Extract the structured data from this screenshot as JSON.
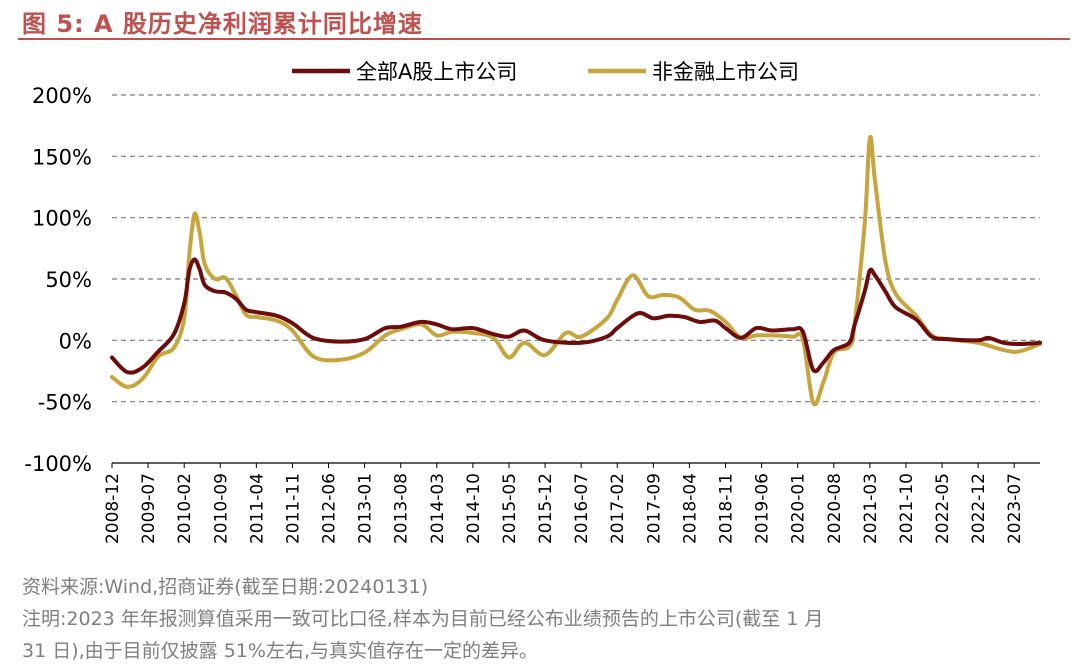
{
  "title": "图 5:  A 股历史净利润累计同比增速",
  "notes": {
    "source": "资料来源:Wind,招商证券(截至日期:20240131)",
    "line1": "注明:2023 年年报测算值采用一致可比口径,样本为目前已经公布业绩预告的上市公司(截至 1 月",
    "line2": "31 日),由于目前仅披露 51%左右,与真实值存在一定的差异。"
  },
  "chart_data": {
    "type": "line",
    "x_start": "2008-12",
    "x_end": "2023-12",
    "x_tick_labels": [
      "2008-12",
      "2009-07",
      "2010-02",
      "2010-09",
      "2011-04",
      "2011-11",
      "2012-06",
      "2013-01",
      "2013-08",
      "2014-03",
      "2014-10",
      "2015-05",
      "2015-12",
      "2016-07",
      "2017-02",
      "2017-09",
      "2018-04",
      "2018-11",
      "2019-06",
      "2020-01",
      "2020-08",
      "2021-03",
      "2021-10",
      "2022-05",
      "2022-12",
      "2023-07"
    ],
    "y_tick_labels": [
      "200%",
      "150%",
      "100%",
      "50%",
      "0%",
      "-50%",
      "-100%"
    ],
    "ylim": [
      -100,
      200
    ],
    "y_ticks": [
      200,
      150,
      100,
      50,
      0,
      -50,
      -100
    ],
    "grid": true,
    "legend_position": "top",
    "series": [
      {
        "name": "全部A股上市公司",
        "color": "#6e0b0b",
        "points": [
          [
            "2008-12",
            -14
          ],
          [
            "2009-03",
            -26
          ],
          [
            "2009-06",
            -22
          ],
          [
            "2009-09",
            -9
          ],
          [
            "2009-12",
            5
          ],
          [
            "2010-02",
            30
          ],
          [
            "2010-03",
            57
          ],
          [
            "2010-04",
            66
          ],
          [
            "2010-05",
            58
          ],
          [
            "2010-06",
            45
          ],
          [
            "2010-08",
            40
          ],
          [
            "2010-10",
            39
          ],
          [
            "2010-12",
            34
          ],
          [
            "2011-02",
            25
          ],
          [
            "2011-04",
            23
          ],
          [
            "2011-08",
            20
          ],
          [
            "2011-11",
            14
          ],
          [
            "2012-03",
            2
          ],
          [
            "2012-08",
            -1
          ],
          [
            "2013-01",
            1
          ],
          [
            "2013-05",
            10
          ],
          [
            "2013-08",
            11
          ],
          [
            "2013-12",
            15
          ],
          [
            "2014-03",
            13
          ],
          [
            "2014-06",
            9
          ],
          [
            "2014-10",
            10
          ],
          [
            "2015-02",
            5
          ],
          [
            "2015-05",
            3
          ],
          [
            "2015-08",
            8
          ],
          [
            "2015-12",
            0
          ],
          [
            "2016-07",
            -2
          ],
          [
            "2016-12",
            3
          ],
          [
            "2017-02",
            10
          ],
          [
            "2017-06",
            22
          ],
          [
            "2017-09",
            18
          ],
          [
            "2017-12",
            20
          ],
          [
            "2018-03",
            19
          ],
          [
            "2018-06",
            15
          ],
          [
            "2018-09",
            16
          ],
          [
            "2018-11",
            10
          ],
          [
            "2019-02",
            2
          ],
          [
            "2019-05",
            10
          ],
          [
            "2019-08",
            8
          ],
          [
            "2019-12",
            9
          ],
          [
            "2020-02",
            7
          ],
          [
            "2020-04",
            -24
          ],
          [
            "2020-06",
            -18
          ],
          [
            "2020-08",
            -8
          ],
          [
            "2020-11",
            -2
          ],
          [
            "2020-12",
            12
          ],
          [
            "2021-02",
            40
          ],
          [
            "2021-03",
            57
          ],
          [
            "2021-04",
            53
          ],
          [
            "2021-06",
            40
          ],
          [
            "2021-08",
            27
          ],
          [
            "2021-12",
            17
          ],
          [
            "2022-03",
            3
          ],
          [
            "2022-06",
            1
          ],
          [
            "2022-12",
            0
          ],
          [
            "2023-02",
            2
          ],
          [
            "2023-05",
            -2
          ],
          [
            "2023-08",
            -3
          ],
          [
            "2023-12",
            -2
          ]
        ]
      },
      {
        "name": "非金融上市公司",
        "color": "#c8a43c",
        "points": [
          [
            "2008-12",
            -30
          ],
          [
            "2009-03",
            -38
          ],
          [
            "2009-06",
            -31
          ],
          [
            "2009-09",
            -13
          ],
          [
            "2009-12",
            -6
          ],
          [
            "2010-02",
            18
          ],
          [
            "2010-03",
            70
          ],
          [
            "2010-04",
            103
          ],
          [
            "2010-05",
            88
          ],
          [
            "2010-06",
            62
          ],
          [
            "2010-08",
            50
          ],
          [
            "2010-10",
            51
          ],
          [
            "2010-12",
            37
          ],
          [
            "2011-02",
            21
          ],
          [
            "2011-04",
            19
          ],
          [
            "2011-08",
            16
          ],
          [
            "2011-11",
            8
          ],
          [
            "2012-03",
            -13
          ],
          [
            "2012-08",
            -16
          ],
          [
            "2013-01",
            -10
          ],
          [
            "2013-05",
            4
          ],
          [
            "2013-08",
            9
          ],
          [
            "2013-12",
            13
          ],
          [
            "2014-03",
            4
          ],
          [
            "2014-06",
            7
          ],
          [
            "2014-10",
            6
          ],
          [
            "2015-02",
            2
          ],
          [
            "2015-05",
            -14
          ],
          [
            "2015-08",
            -2
          ],
          [
            "2015-12",
            -12
          ],
          [
            "2016-04",
            6
          ],
          [
            "2016-07",
            3
          ],
          [
            "2016-12",
            18
          ],
          [
            "2017-02",
            33
          ],
          [
            "2017-05",
            53
          ],
          [
            "2017-08",
            36
          ],
          [
            "2017-11",
            37
          ],
          [
            "2018-02",
            35
          ],
          [
            "2018-05",
            25
          ],
          [
            "2018-08",
            24
          ],
          [
            "2018-11",
            15
          ],
          [
            "2019-02",
            2
          ],
          [
            "2019-05",
            4
          ],
          [
            "2019-08",
            4
          ],
          [
            "2019-12",
            3
          ],
          [
            "2020-02",
            1
          ],
          [
            "2020-04",
            -51
          ],
          [
            "2020-06",
            -34
          ],
          [
            "2020-08",
            -10
          ],
          [
            "2020-11",
            -5
          ],
          [
            "2020-12",
            12
          ],
          [
            "2021-02",
            95
          ],
          [
            "2021-03",
            165
          ],
          [
            "2021-04",
            130
          ],
          [
            "2021-06",
            65
          ],
          [
            "2021-08",
            38
          ],
          [
            "2021-12",
            20
          ],
          [
            "2022-03",
            4
          ],
          [
            "2022-06",
            1
          ],
          [
            "2022-12",
            -2
          ],
          [
            "2023-05",
            -8
          ],
          [
            "2023-08",
            -9
          ],
          [
            "2023-12",
            -3
          ]
        ]
      }
    ]
  }
}
